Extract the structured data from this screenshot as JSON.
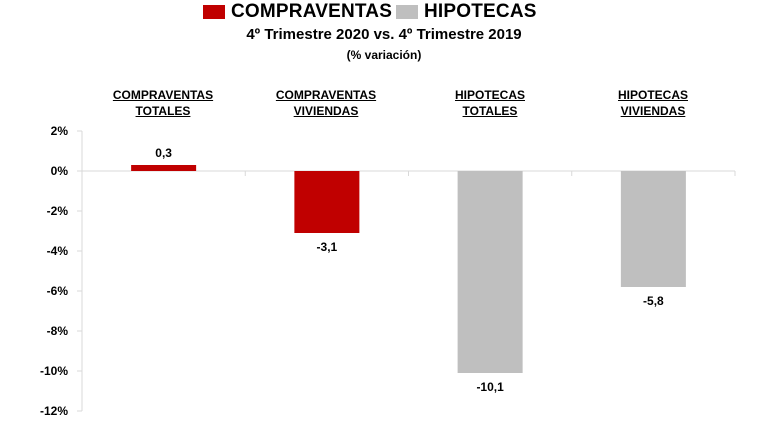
{
  "legend": [
    {
      "label": "COMPRAVENTAS",
      "color": "#c00000"
    },
    {
      "label": "HIPOTECAS",
      "color": "#bfbfbf"
    }
  ],
  "title": "4º Trimestre 2020  vs. 4º Trimestre 2019",
  "subtitle": "(% variación)",
  "chart_data": {
    "type": "bar",
    "categories": [
      [
        "COMPRAVENTAS",
        "TOTALES"
      ],
      [
        "COMPRAVENTAS",
        "VIVIENDAS"
      ],
      [
        "HIPOTECAS",
        "TOTALES"
      ],
      [
        "HIPOTECAS",
        "VIVIENDAS"
      ]
    ],
    "values": [
      0.3,
      -3.1,
      -10.1,
      -5.8
    ],
    "value_labels": [
      "0,3",
      "-3,1",
      "-10,1",
      "-5,8"
    ],
    "colors": [
      "#c00000",
      "#c00000",
      "#bfbfbf",
      "#bfbfbf"
    ],
    "ylim": [
      -12,
      2
    ],
    "yticks": [
      2,
      0,
      -2,
      -4,
      -6,
      -8,
      -10,
      -12
    ],
    "ytick_labels": [
      "2%",
      "0%",
      "-2%",
      "-4%",
      "-6%",
      "-8%",
      "-10%",
      "-12%"
    ],
    "grid": false,
    "legend_position": "top"
  }
}
